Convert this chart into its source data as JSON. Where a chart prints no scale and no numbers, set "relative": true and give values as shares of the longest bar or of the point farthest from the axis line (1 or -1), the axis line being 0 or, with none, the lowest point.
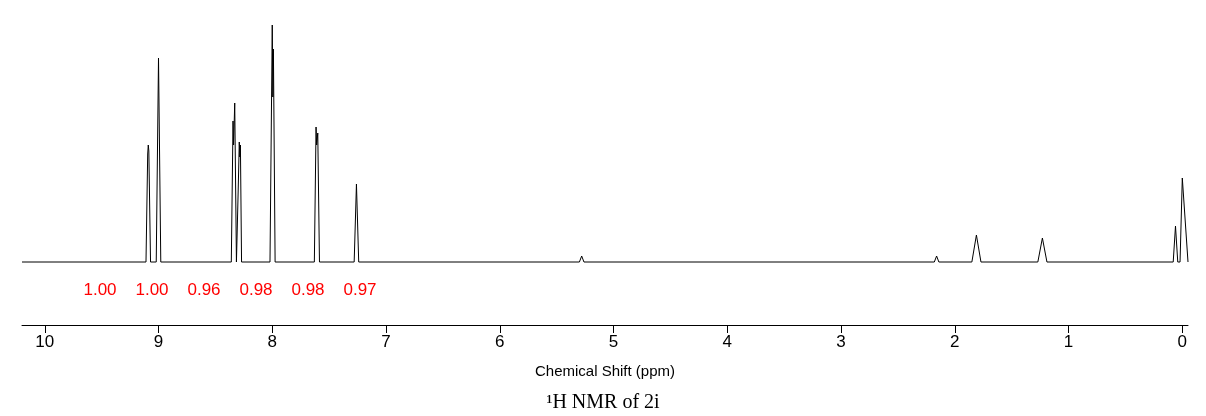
{
  "chart_data": {
    "type": "line",
    "title": "¹H NMR of 2i",
    "xlabel": "Chemical Shift (ppm)",
    "relative": true,
    "color": "#000000",
    "x": [
      10.2,
      9.11,
      9.095,
      9.09,
      9.085,
      9.07,
      9.02,
      9.0,
      8.98,
      8.36,
      8.345,
      8.34,
      8.33,
      8.315,
      8.3,
      8.29,
      8.285,
      8.28,
      8.27,
      8.02,
      8.0,
      7.995,
      7.99,
      7.975,
      7.63,
      7.615,
      7.61,
      7.6,
      7.585,
      7.28,
      7.26,
      7.24,
      5.3,
      5.28,
      5.26,
      2.18,
      2.16,
      2.14,
      1.85,
      1.81,
      1.77,
      1.27,
      1.23,
      1.19,
      0.08,
      0.06,
      0.04,
      0.02,
      0.0,
      -0.05
    ],
    "values": [
      0.21,
      0.21,
      0.57,
      0.6,
      0.58,
      0.21,
      0.21,
      0.89,
      0.21,
      0.21,
      0.68,
      0.6,
      0.74,
      0.21,
      0.44,
      0.61,
      0.56,
      0.6,
      0.21,
      0.21,
      1.0,
      0.76,
      0.92,
      0.21,
      0.21,
      0.66,
      0.6,
      0.64,
      0.21,
      0.21,
      0.47,
      0.21,
      0.21,
      0.23,
      0.21,
      0.21,
      0.23,
      0.21,
      0.21,
      0.3,
      0.21,
      0.21,
      0.29,
      0.21,
      0.21,
      0.33,
      0.21,
      0.21,
      0.49,
      0.21
    ],
    "xlim": [
      10.2,
      -0.05
    ],
    "xticks": [
      10,
      9,
      8,
      7,
      6,
      5,
      4,
      3,
      2,
      1,
      0
    ],
    "grid": false,
    "marker": "none",
    "line_style": "solid",
    "annotations": [
      "1.00",
      "1.00",
      "0.96",
      "0.98",
      "0.98",
      "0.97"
    ]
  }
}
